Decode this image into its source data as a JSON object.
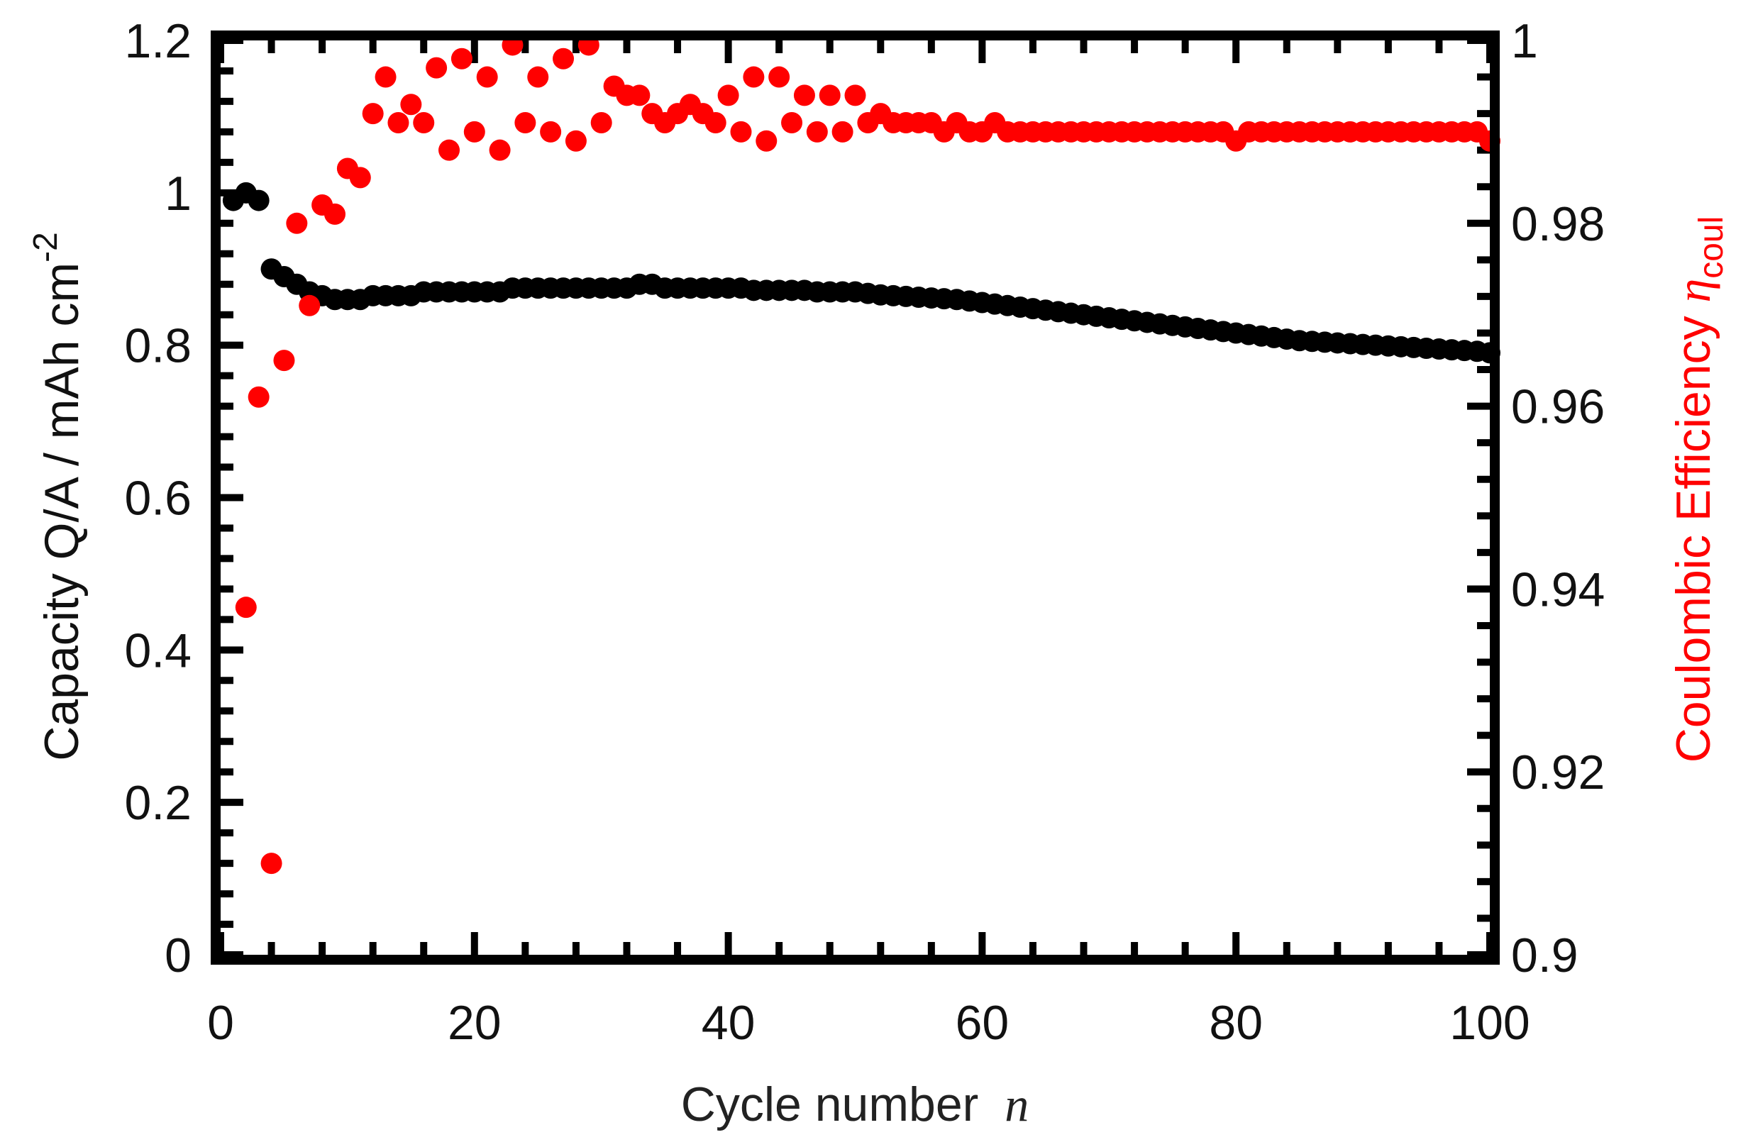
{
  "chart_data": {
    "type": "scatter",
    "title": "",
    "xlabel": "Cycle number",
    "xlabel_var": "n",
    "ylabel": "Capacity Q/A / mAh cm",
    "ylabel_sup": "-2",
    "y2label": "Coulombic Efficiency ",
    "y2label_var": "η",
    "y2label_sub": "coul",
    "xlim": [
      0,
      100
    ],
    "ylim": [
      0,
      1.2
    ],
    "y2lim": [
      0.9,
      1.0
    ],
    "x_ticks": [
      "0",
      "20",
      "40",
      "60",
      "80",
      "100"
    ],
    "y_ticks": [
      "0",
      "0.2",
      "0.4",
      "0.6",
      "0.8",
      "1",
      "1.2"
    ],
    "y2_ticks": [
      "0.9",
      "0.92",
      "0.94",
      "0.96",
      "0.98",
      "1"
    ],
    "colors": {
      "capacity": "#000000",
      "efficiency": "#ff0000",
      "axis": "#000000"
    },
    "series": [
      {
        "name": "Capacity",
        "axis": "left",
        "color": "#000000",
        "x": [
          1,
          2,
          3,
          4,
          5,
          6,
          7,
          8,
          9,
          10,
          11,
          12,
          13,
          14,
          15,
          16,
          17,
          18,
          19,
          20,
          21,
          22,
          23,
          24,
          25,
          26,
          27,
          28,
          29,
          30,
          31,
          32,
          33,
          34,
          35,
          36,
          37,
          38,
          39,
          40,
          41,
          42,
          43,
          44,
          45,
          46,
          47,
          48,
          49,
          50,
          51,
          52,
          53,
          54,
          55,
          56,
          57,
          58,
          59,
          60,
          61,
          62,
          63,
          64,
          65,
          66,
          67,
          68,
          69,
          70,
          71,
          72,
          73,
          74,
          75,
          76,
          77,
          78,
          79,
          80,
          81,
          82,
          83,
          84,
          85,
          86,
          87,
          88,
          89,
          90,
          91,
          92,
          93,
          94,
          95,
          96,
          97,
          98,
          99,
          100
        ],
        "values": [
          0.99,
          1.0,
          0.99,
          0.9,
          0.89,
          0.88,
          0.87,
          0.865,
          0.86,
          0.86,
          0.86,
          0.865,
          0.865,
          0.865,
          0.865,
          0.87,
          0.87,
          0.87,
          0.87,
          0.87,
          0.87,
          0.87,
          0.875,
          0.875,
          0.875,
          0.875,
          0.875,
          0.875,
          0.875,
          0.875,
          0.875,
          0.875,
          0.88,
          0.88,
          0.875,
          0.875,
          0.875,
          0.875,
          0.875,
          0.875,
          0.875,
          0.872,
          0.872,
          0.872,
          0.872,
          0.872,
          0.87,
          0.87,
          0.87,
          0.87,
          0.868,
          0.866,
          0.865,
          0.864,
          0.863,
          0.862,
          0.861,
          0.86,
          0.858,
          0.856,
          0.854,
          0.852,
          0.85,
          0.848,
          0.846,
          0.844,
          0.842,
          0.84,
          0.838,
          0.836,
          0.834,
          0.832,
          0.83,
          0.828,
          0.826,
          0.824,
          0.822,
          0.82,
          0.818,
          0.816,
          0.814,
          0.812,
          0.81,
          0.808,
          0.806,
          0.805,
          0.804,
          0.803,
          0.802,
          0.801,
          0.8,
          0.799,
          0.798,
          0.797,
          0.796,
          0.795,
          0.794,
          0.793,
          0.792,
          0.79
        ]
      },
      {
        "name": "Coulombic Efficiency",
        "axis": "right",
        "color": "#ff0000",
        "x": [
          2,
          3,
          4,
          5,
          6,
          7,
          8,
          9,
          10,
          11,
          12,
          13,
          14,
          15,
          16,
          17,
          18,
          19,
          20,
          21,
          22,
          23,
          24,
          25,
          26,
          27,
          28,
          29,
          30,
          31,
          32,
          33,
          34,
          35,
          36,
          37,
          38,
          39,
          40,
          41,
          42,
          43,
          44,
          45,
          46,
          47,
          48,
          49,
          50,
          51,
          52,
          53,
          54,
          55,
          56,
          57,
          58,
          59,
          60,
          61,
          62,
          63,
          64,
          65,
          66,
          67,
          68,
          69,
          70,
          71,
          72,
          73,
          74,
          75,
          76,
          77,
          78,
          79,
          80,
          81,
          82,
          83,
          84,
          85,
          86,
          87,
          88,
          89,
          90,
          91,
          92,
          93,
          94,
          95,
          96,
          97,
          98,
          99,
          100
        ],
        "values": [
          0.938,
          0.961,
          0.91,
          0.965,
          0.98,
          0.971,
          0.982,
          0.981,
          0.986,
          0.985,
          0.992,
          0.996,
          0.991,
          0.993,
          0.991,
          0.997,
          0.988,
          0.998,
          0.99,
          0.996,
          0.988,
          0.9995,
          0.991,
          0.996,
          0.99,
          0.998,
          0.989,
          0.9995,
          0.991,
          0.995,
          0.994,
          0.994,
          0.992,
          0.991,
          0.992,
          0.993,
          0.992,
          0.991,
          0.994,
          0.99,
          0.996,
          0.989,
          0.996,
          0.991,
          0.994,
          0.99,
          0.994,
          0.99,
          0.994,
          0.991,
          0.992,
          0.991,
          0.991,
          0.991,
          0.991,
          0.99,
          0.991,
          0.99,
          0.99,
          0.991,
          0.99,
          0.99,
          0.99,
          0.99,
          0.99,
          0.99,
          0.99,
          0.99,
          0.99,
          0.99,
          0.99,
          0.99,
          0.99,
          0.99,
          0.99,
          0.99,
          0.99,
          0.99,
          0.989,
          0.99,
          0.99,
          0.99,
          0.99,
          0.99,
          0.99,
          0.99,
          0.99,
          0.99,
          0.99,
          0.99,
          0.99,
          0.99,
          0.99,
          0.99,
          0.99,
          0.99,
          0.99,
          0.99,
          0.989
        ]
      }
    ]
  }
}
